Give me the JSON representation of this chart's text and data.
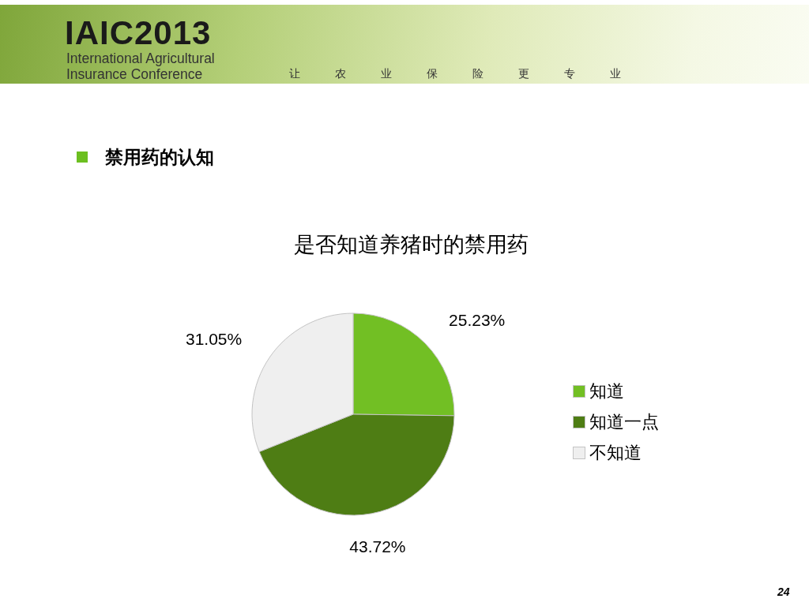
{
  "chart_data": {
    "type": "pie",
    "title": "是否知道养猪时的禁用药",
    "categories": [
      "知道",
      "知道一点",
      "不知道"
    ],
    "values": [
      25.23,
      43.72,
      31.05
    ],
    "colors": [
      "#72bf24",
      "#4e7d14",
      "#efefef"
    ],
    "value_labels": [
      "25.23%",
      "43.72%",
      "31.05%"
    ],
    "legend": "right",
    "annotations": [
      "IAIC2013",
      "International Agricultural Insurance Conference",
      "让农业保险更专业",
      "禁用药的认知",
      "24"
    ]
  }
}
